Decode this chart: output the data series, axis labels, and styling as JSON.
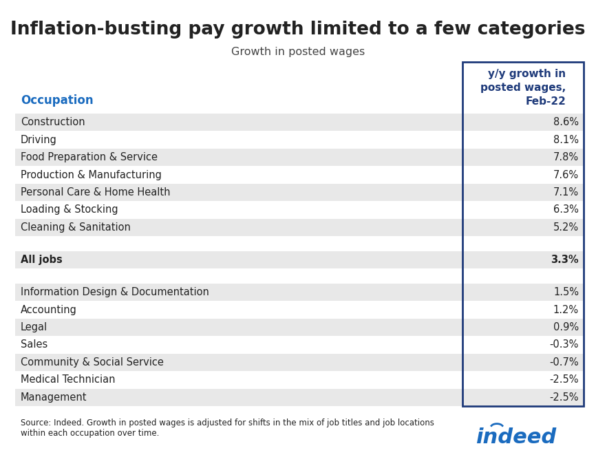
{
  "title": "Inflation-busting pay growth limited to a few categories",
  "subtitle": "Growth in posted wages",
  "col_header": "y/y growth in\nposted wages,\nFeb-22",
  "col_header_color": "#1e3a7a",
  "occupation_label": "Occupation",
  "occupation_label_color": "#1a6bbf",
  "rows": [
    {
      "label": "Construction",
      "value": "8.6%",
      "bold": false,
      "shaded": true,
      "spacer": false
    },
    {
      "label": "Driving",
      "value": "8.1%",
      "bold": false,
      "shaded": false,
      "spacer": false
    },
    {
      "label": "Food Preparation & Service",
      "value": "7.8%",
      "bold": false,
      "shaded": true,
      "spacer": false
    },
    {
      "label": "Production & Manufacturing",
      "value": "7.6%",
      "bold": false,
      "shaded": false,
      "spacer": false
    },
    {
      "label": "Personal Care & Home Health",
      "value": "7.1%",
      "bold": false,
      "shaded": true,
      "spacer": false
    },
    {
      "label": "Loading & Stocking",
      "value": "6.3%",
      "bold": false,
      "shaded": false,
      "spacer": false
    },
    {
      "label": "Cleaning & Sanitation",
      "value": "5.2%",
      "bold": false,
      "shaded": true,
      "spacer": false
    },
    {
      "label": "",
      "value": "",
      "bold": false,
      "shaded": false,
      "spacer": true
    },
    {
      "label": "All jobs",
      "value": "3.3%",
      "bold": true,
      "shaded": true,
      "spacer": false
    },
    {
      "label": "",
      "value": "",
      "bold": false,
      "shaded": false,
      "spacer": true
    },
    {
      "label": "Information Design & Documentation",
      "value": "1.5%",
      "bold": false,
      "shaded": true,
      "spacer": false
    },
    {
      "label": "Accounting",
      "value": "1.2%",
      "bold": false,
      "shaded": false,
      "spacer": false
    },
    {
      "label": "Legal",
      "value": "0.9%",
      "bold": false,
      "shaded": true,
      "spacer": false
    },
    {
      "label": "Sales",
      "value": "-0.3%",
      "bold": false,
      "shaded": false,
      "spacer": false
    },
    {
      "label": "Community & Social Service",
      "value": "-0.7%",
      "bold": false,
      "shaded": true,
      "spacer": false
    },
    {
      "label": "Medical Technician",
      "value": "-2.5%",
      "bold": false,
      "shaded": false,
      "spacer": false
    },
    {
      "label": "Management",
      "value": "-2.5%",
      "bold": false,
      "shaded": true,
      "spacer": false
    }
  ],
  "shaded_color": "#e8e8e8",
  "white_color": "#ffffff",
  "background_color": "#ffffff",
  "text_color": "#222222",
  "border_color": "#1e3a7a",
  "source_text_parts": [
    {
      "text": "Source:",
      "bold": true
    },
    {
      "text": " Indeed. Growth in posted wages is adjusted for shifts in the ",
      "bold": false
    },
    {
      "text": "mix",
      "bold": true
    },
    {
      "text": " of job titles and job locations\nwithin ",
      "bold": false
    },
    {
      "text": "each",
      "bold": true
    },
    {
      "text": " occupation over ",
      "bold": false
    },
    {
      "text": "time",
      "bold": true
    },
    {
      "text": ".",
      "bold": false
    }
  ],
  "indeed_color": "#1a6bbf",
  "title_fontsize": 19,
  "subtitle_fontsize": 11.5,
  "row_fontsize": 10.5,
  "header_fontsize": 11
}
